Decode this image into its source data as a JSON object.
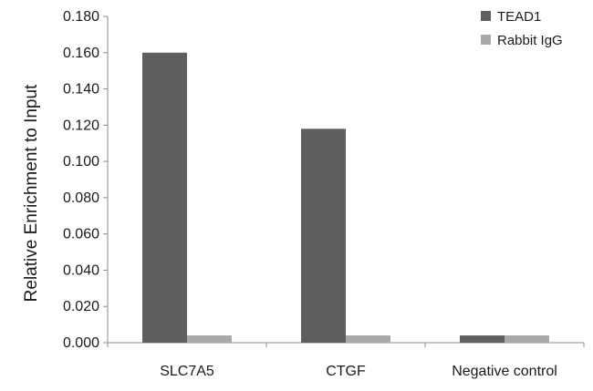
{
  "chart_data": {
    "type": "bar",
    "categories": [
      "SLC7A5",
      "CTGF",
      "Negative control"
    ],
    "series": [
      {
        "name": "TEAD1",
        "color": "#5f5f5f",
        "values": [
          0.16,
          0.118,
          0.004
        ]
      },
      {
        "name": "Rabbit IgG",
        "color": "#a9a9a9",
        "values": [
          0.004,
          0.004,
          0.004
        ]
      }
    ],
    "ylabel": "Relative Enrichment to Input",
    "xlabel": "",
    "ylim": [
      0,
      0.18
    ],
    "yticks": [
      "0.000",
      "0.020",
      "0.040",
      "0.060",
      "0.080",
      "0.100",
      "0.120",
      "0.140",
      "0.160",
      "0.180"
    ],
    "grid": false,
    "legend": "top-right"
  }
}
